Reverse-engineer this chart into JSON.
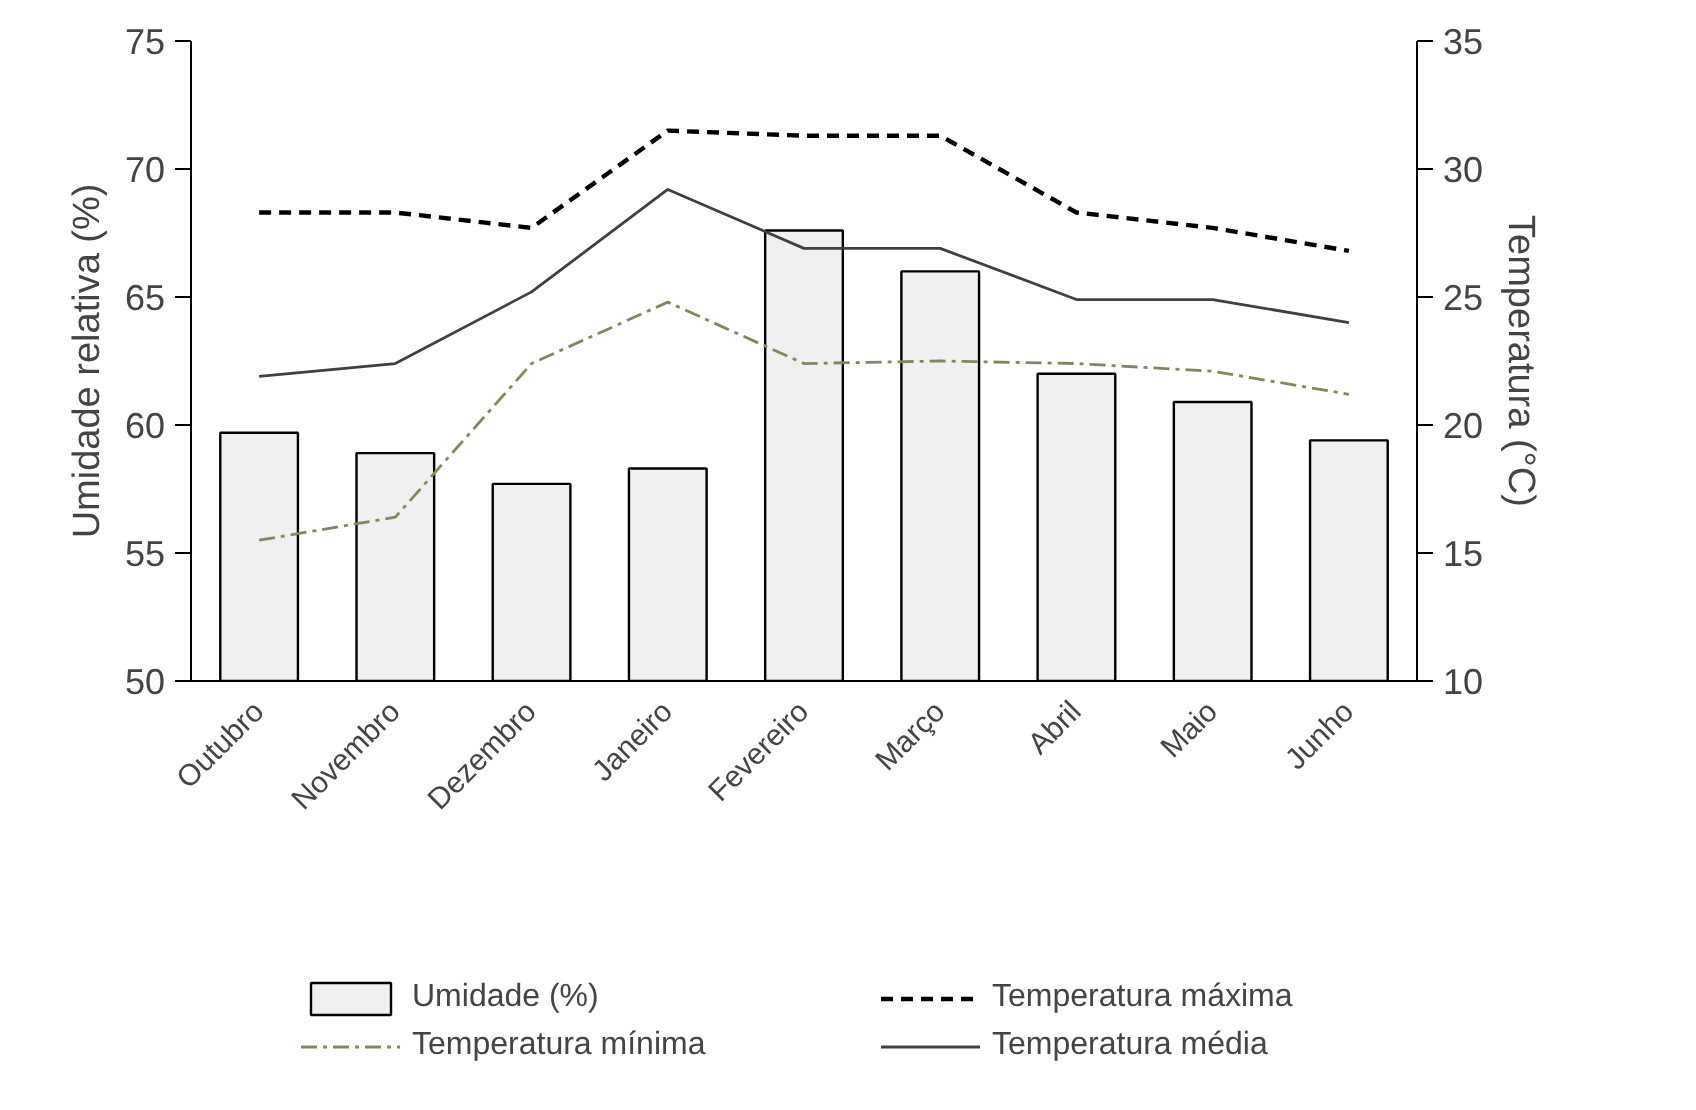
{
  "chart_data": {
    "type": "bar",
    "ylabel": "Umidade relativa (%)",
    "y2label": "Temperatura (°C)",
    "categories": [
      "Outubro",
      "Novembro",
      "Dezembro",
      "Janeiro",
      "Fevereiro",
      "Março",
      "Abril",
      "Maio",
      "Junho"
    ],
    "series": [
      {
        "name": "Umidade (%)",
        "color": "#f0f0f0",
        "values": [
          59.7,
          58.9,
          57.7,
          58.3,
          67.6,
          66.0,
          62.0,
          60.9,
          59.4
        ]
      },
      {
        "name": "Temperatura máxima",
        "type": "line",
        "axis": "y2",
        "color": "#000000",
        "line_style": "dashed",
        "values": [
          28.3,
          28.3,
          27.7,
          31.5,
          31.3,
          31.3,
          28.3,
          27.7,
          26.8
        ]
      },
      {
        "name": "Temperatura mínima",
        "type": "line",
        "axis": "y2",
        "color": "#7f8a5c",
        "line_style": "dashdot",
        "values": [
          15.5,
          16.4,
          22.4,
          24.8,
          22.4,
          22.5,
          22.4,
          22.1,
          21.2
        ]
      },
      {
        "name": "Temperatura média",
        "type": "line",
        "axis": "y2",
        "color": "#404040",
        "line_style": "solid",
        "values": [
          21.9,
          22.4,
          25.2,
          29.2,
          26.9,
          26.9,
          24.9,
          24.9,
          24.0
        ]
      }
    ],
    "ylim": [
      50,
      75
    ],
    "yticks": [
      50,
      55,
      60,
      65,
      70,
      75
    ],
    "y2lim": [
      10,
      35
    ],
    "y2ticks": [
      10,
      15,
      20,
      25,
      30,
      35
    ],
    "grid": false,
    "legend": "bottom",
    "marker": "none"
  }
}
